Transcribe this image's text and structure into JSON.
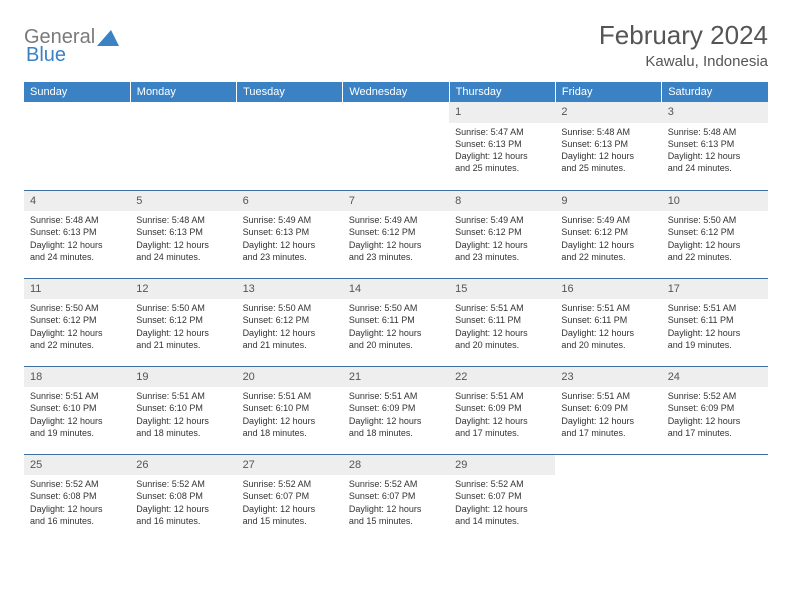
{
  "logo": {
    "general": "General",
    "blue": "Blue"
  },
  "title": "February 2024",
  "location": "Kawalu, Indonesia",
  "colors": {
    "header_bg": "#3b82c4",
    "header_text": "#ffffff",
    "daynum_bg": "#eeeeee",
    "text": "#555555",
    "border": "#3b6fa0",
    "logo_gray": "#7a7a7a",
    "logo_blue": "#3b82c4"
  },
  "weekdays": [
    "Sunday",
    "Monday",
    "Tuesday",
    "Wednesday",
    "Thursday",
    "Friday",
    "Saturday"
  ],
  "grid": [
    [
      null,
      null,
      null,
      null,
      {
        "n": "1",
        "sr": "Sunrise: 5:47 AM",
        "ss": "Sunset: 6:13 PM",
        "d1": "Daylight: 12 hours",
        "d2": "and 25 minutes."
      },
      {
        "n": "2",
        "sr": "Sunrise: 5:48 AM",
        "ss": "Sunset: 6:13 PM",
        "d1": "Daylight: 12 hours",
        "d2": "and 25 minutes."
      },
      {
        "n": "3",
        "sr": "Sunrise: 5:48 AM",
        "ss": "Sunset: 6:13 PM",
        "d1": "Daylight: 12 hours",
        "d2": "and 24 minutes."
      }
    ],
    [
      {
        "n": "4",
        "sr": "Sunrise: 5:48 AM",
        "ss": "Sunset: 6:13 PM",
        "d1": "Daylight: 12 hours",
        "d2": "and 24 minutes."
      },
      {
        "n": "5",
        "sr": "Sunrise: 5:48 AM",
        "ss": "Sunset: 6:13 PM",
        "d1": "Daylight: 12 hours",
        "d2": "and 24 minutes."
      },
      {
        "n": "6",
        "sr": "Sunrise: 5:49 AM",
        "ss": "Sunset: 6:13 PM",
        "d1": "Daylight: 12 hours",
        "d2": "and 23 minutes."
      },
      {
        "n": "7",
        "sr": "Sunrise: 5:49 AM",
        "ss": "Sunset: 6:12 PM",
        "d1": "Daylight: 12 hours",
        "d2": "and 23 minutes."
      },
      {
        "n": "8",
        "sr": "Sunrise: 5:49 AM",
        "ss": "Sunset: 6:12 PM",
        "d1": "Daylight: 12 hours",
        "d2": "and 23 minutes."
      },
      {
        "n": "9",
        "sr": "Sunrise: 5:49 AM",
        "ss": "Sunset: 6:12 PM",
        "d1": "Daylight: 12 hours",
        "d2": "and 22 minutes."
      },
      {
        "n": "10",
        "sr": "Sunrise: 5:50 AM",
        "ss": "Sunset: 6:12 PM",
        "d1": "Daylight: 12 hours",
        "d2": "and 22 minutes."
      }
    ],
    [
      {
        "n": "11",
        "sr": "Sunrise: 5:50 AM",
        "ss": "Sunset: 6:12 PM",
        "d1": "Daylight: 12 hours",
        "d2": "and 22 minutes."
      },
      {
        "n": "12",
        "sr": "Sunrise: 5:50 AM",
        "ss": "Sunset: 6:12 PM",
        "d1": "Daylight: 12 hours",
        "d2": "and 21 minutes."
      },
      {
        "n": "13",
        "sr": "Sunrise: 5:50 AM",
        "ss": "Sunset: 6:12 PM",
        "d1": "Daylight: 12 hours",
        "d2": "and 21 minutes."
      },
      {
        "n": "14",
        "sr": "Sunrise: 5:50 AM",
        "ss": "Sunset: 6:11 PM",
        "d1": "Daylight: 12 hours",
        "d2": "and 20 minutes."
      },
      {
        "n": "15",
        "sr": "Sunrise: 5:51 AM",
        "ss": "Sunset: 6:11 PM",
        "d1": "Daylight: 12 hours",
        "d2": "and 20 minutes."
      },
      {
        "n": "16",
        "sr": "Sunrise: 5:51 AM",
        "ss": "Sunset: 6:11 PM",
        "d1": "Daylight: 12 hours",
        "d2": "and 20 minutes."
      },
      {
        "n": "17",
        "sr": "Sunrise: 5:51 AM",
        "ss": "Sunset: 6:11 PM",
        "d1": "Daylight: 12 hours",
        "d2": "and 19 minutes."
      }
    ],
    [
      {
        "n": "18",
        "sr": "Sunrise: 5:51 AM",
        "ss": "Sunset: 6:10 PM",
        "d1": "Daylight: 12 hours",
        "d2": "and 19 minutes."
      },
      {
        "n": "19",
        "sr": "Sunrise: 5:51 AM",
        "ss": "Sunset: 6:10 PM",
        "d1": "Daylight: 12 hours",
        "d2": "and 18 minutes."
      },
      {
        "n": "20",
        "sr": "Sunrise: 5:51 AM",
        "ss": "Sunset: 6:10 PM",
        "d1": "Daylight: 12 hours",
        "d2": "and 18 minutes."
      },
      {
        "n": "21",
        "sr": "Sunrise: 5:51 AM",
        "ss": "Sunset: 6:09 PM",
        "d1": "Daylight: 12 hours",
        "d2": "and 18 minutes."
      },
      {
        "n": "22",
        "sr": "Sunrise: 5:51 AM",
        "ss": "Sunset: 6:09 PM",
        "d1": "Daylight: 12 hours",
        "d2": "and 17 minutes."
      },
      {
        "n": "23",
        "sr": "Sunrise: 5:51 AM",
        "ss": "Sunset: 6:09 PM",
        "d1": "Daylight: 12 hours",
        "d2": "and 17 minutes."
      },
      {
        "n": "24",
        "sr": "Sunrise: 5:52 AM",
        "ss": "Sunset: 6:09 PM",
        "d1": "Daylight: 12 hours",
        "d2": "and 17 minutes."
      }
    ],
    [
      {
        "n": "25",
        "sr": "Sunrise: 5:52 AM",
        "ss": "Sunset: 6:08 PM",
        "d1": "Daylight: 12 hours",
        "d2": "and 16 minutes."
      },
      {
        "n": "26",
        "sr": "Sunrise: 5:52 AM",
        "ss": "Sunset: 6:08 PM",
        "d1": "Daylight: 12 hours",
        "d2": "and 16 minutes."
      },
      {
        "n": "27",
        "sr": "Sunrise: 5:52 AM",
        "ss": "Sunset: 6:07 PM",
        "d1": "Daylight: 12 hours",
        "d2": "and 15 minutes."
      },
      {
        "n": "28",
        "sr": "Sunrise: 5:52 AM",
        "ss": "Sunset: 6:07 PM",
        "d1": "Daylight: 12 hours",
        "d2": "and 15 minutes."
      },
      {
        "n": "29",
        "sr": "Sunrise: 5:52 AM",
        "ss": "Sunset: 6:07 PM",
        "d1": "Daylight: 12 hours",
        "d2": "and 14 minutes."
      },
      null,
      null
    ]
  ]
}
